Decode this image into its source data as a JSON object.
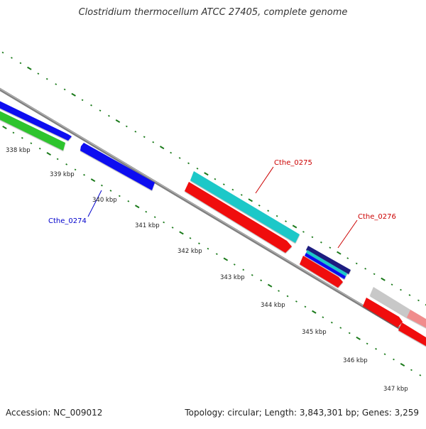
{
  "title": "Clostridium thermocellum ATCC 27405, complete genome",
  "footer": {
    "accession": "Accession: NC_009012",
    "summary": "Topology: circular; Length: 3,843,301 bp; Genes: 3,259"
  },
  "ticks": [
    "338 kbp",
    "339 kbp",
    "340 kbp",
    "341 kbp",
    "342 kbp",
    "343 kbp",
    "344 kbp",
    "345 kbp",
    "346 kbp",
    "347 kbp"
  ],
  "gene_labels": {
    "cthe_0274": "Cthe_0274",
    "cthe_0275": "Cthe_0275",
    "cthe_0276": "Cthe_0276"
  },
  "colors": {
    "backbone": "#808080",
    "tick_dots": "#1a7a1a",
    "blue_gene": "#0a0af0",
    "green_gene": "#2ec42e",
    "cyan_gene": "#1ec8c8",
    "red_gene": "#f00a0a",
    "gray_gene": "#c8c8c8",
    "pink_gene": "#f08c8c",
    "label_blue": "#0000cc",
    "label_red": "#cc0000"
  }
}
